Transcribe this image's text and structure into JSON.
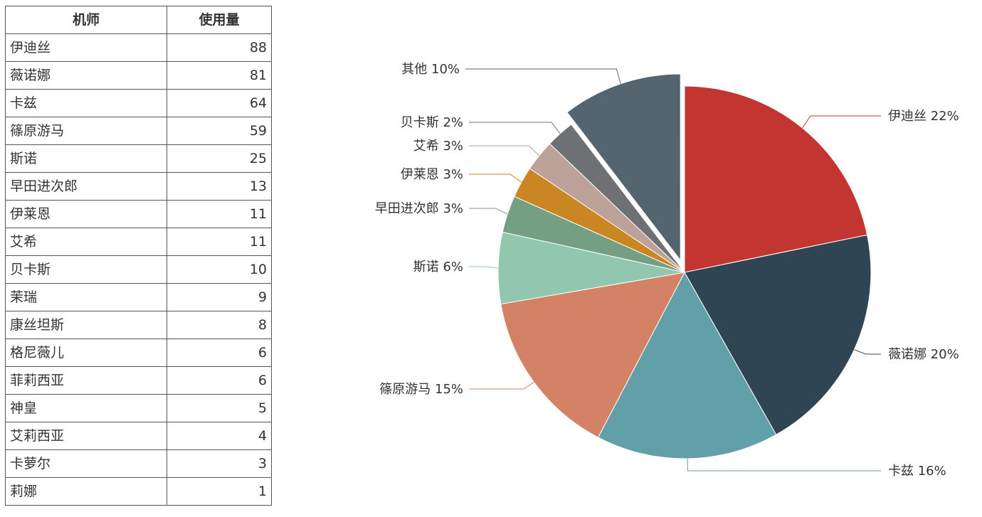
{
  "table": {
    "headers": [
      "机师",
      "使用量"
    ],
    "rows": [
      {
        "name": "伊迪丝",
        "value": "88"
      },
      {
        "name": "薇诺娜",
        "value": "81"
      },
      {
        "name": "卡兹",
        "value": "64"
      },
      {
        "name": "篠原游马",
        "value": "59"
      },
      {
        "name": "斯诺",
        "value": "25"
      },
      {
        "name": "早田进次郎",
        "value": "13"
      },
      {
        "name": "伊莱恩",
        "value": "11"
      },
      {
        "name": "艾希",
        "value": "11"
      },
      {
        "name": "贝卡斯",
        "value": "10"
      },
      {
        "name": "茉瑞",
        "value": "9"
      },
      {
        "name": "康丝坦斯",
        "value": "8"
      },
      {
        "name": "格尼薇儿",
        "value": "6"
      },
      {
        "name": "菲莉西亚",
        "value": "6"
      },
      {
        "name": "神皇",
        "value": "5"
      },
      {
        "name": "艾莉西亚",
        "value": "4"
      },
      {
        "name": "卡萝尔",
        "value": "3"
      },
      {
        "name": "莉娜",
        "value": "1"
      }
    ]
  },
  "chart_data": {
    "type": "pie",
    "title": "",
    "start": "12 o'clock",
    "direction": "clockwise",
    "slices": [
      {
        "name": "伊迪丝",
        "value": 88,
        "label": "伊迪丝 22%",
        "color": "#c23531"
      },
      {
        "name": "薇诺娜",
        "value": 81,
        "label": "薇诺娜 20%",
        "color": "#2f4554"
      },
      {
        "name": "卡兹",
        "value": 64,
        "label": "卡兹 16%",
        "color": "#61a0a8"
      },
      {
        "name": "篠原游马",
        "value": 59,
        "label": "篠原游马 15%",
        "color": "#d48265"
      },
      {
        "name": "斯诺",
        "value": 25,
        "label": "斯诺 6%",
        "color": "#91c7ae"
      },
      {
        "name": "早田进次郎",
        "value": 13,
        "label": "早田进次郎 3%",
        "color": "#749f83"
      },
      {
        "name": "伊莱恩",
        "value": 11,
        "label": "伊莱恩 3%",
        "color": "#ca8622"
      },
      {
        "name": "艾希",
        "value": 11,
        "label": "艾希 3%",
        "color": "#bda29a"
      },
      {
        "name": "贝卡斯",
        "value": 10,
        "label": "贝卡斯 2%",
        "color": "#6e7074"
      },
      {
        "name": "其他",
        "value": 42,
        "label": "其他 10%",
        "color": "#546570",
        "exploded": true
      }
    ]
  }
}
